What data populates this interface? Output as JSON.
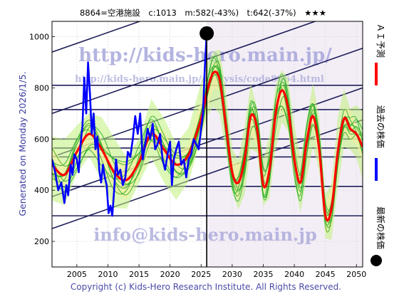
{
  "chart_data": {
    "type": "line",
    "title": "8864=空港施設　c:1013　m:582(-43%)　t:642(-37%)　★★★",
    "side_text": {
      "generated": "Generated on Monday 2026/1/5.",
      "legend_forecast": "ＡＩ予測",
      "legend_past": "過去の株価",
      "legend_latest": "最新の株価"
    },
    "watermarks": [
      "http://kids-hero.main.jp/",
      "http://kids-hero.main.jp/analysis/code8864.html",
      "info@kids-hero.main.jp"
    ],
    "copyright": "Copyright (c) Kids-Hero Research Institute. All Rights Reserved.",
    "xlim": [
      2001,
      2051
    ],
    "ylim": [
      100,
      1060
    ],
    "x_ticks": [
      2005,
      2010,
      2015,
      2020,
      2025,
      2030,
      2035,
      2040,
      2045,
      2050
    ],
    "y_ticks": [
      200,
      400,
      600,
      800,
      1000
    ],
    "grid": true,
    "colors": {
      "past": "#0000ff",
      "forecast": "#ff0000",
      "trend_band": "#1e1e5a",
      "ensemble": "#22aa22",
      "ensemble_fill": "#bff07a",
      "ensemble_fill2": "#f2f0a0",
      "marker": "#000000"
    },
    "horizontal_levels": [
      1063,
      810,
      715,
      600,
      565,
      530,
      415,
      300
    ],
    "trend_lines": [
      {
        "x": [
          2001,
          2051
        ],
        "y": [
          940,
          1365
        ]
      },
      {
        "x": [
          2001,
          2051
        ],
        "y": [
          700,
          1125
        ]
      },
      {
        "x": [
          2001,
          2051
        ],
        "y": [
          530,
          955
        ]
      },
      {
        "x": [
          2001,
          2051
        ],
        "y": [
          375,
          800
        ]
      },
      {
        "x": [
          2001,
          2051
        ],
        "y": [
          250,
          675
        ]
      }
    ],
    "series": [
      {
        "name": "過去の株価",
        "x": [
          2001.0,
          2001.5,
          2002.0,
          2002.5,
          2003.0,
          2003.3,
          2003.6,
          2004.0,
          2004.3,
          2004.6,
          2005.0,
          2005.3,
          2005.6,
          2005.9,
          2006.2,
          2006.5,
          2006.8,
          2007.1,
          2007.4,
          2007.7,
          2008.0,
          2008.3,
          2008.6,
          2008.9,
          2009.2,
          2009.5,
          2009.8,
          2010.1,
          2010.4,
          2010.7,
          2011.0,
          2011.3,
          2011.6,
          2012.0,
          2012.4,
          2012.8,
          2013.2,
          2013.6,
          2014.0,
          2014.4,
          2014.8,
          2015.2,
          2015.6,
          2016.0,
          2016.4,
          2016.8,
          2017.2,
          2017.6,
          2018.0,
          2018.4,
          2018.8,
          2019.2,
          2019.6,
          2020.0,
          2020.3,
          2020.6,
          2021.0,
          2021.4,
          2021.8,
          2022.2,
          2022.6,
          2023.0,
          2023.4,
          2023.8,
          2024.2,
          2024.6,
          2025.0,
          2025.3,
          2025.6,
          2025.9
        ],
        "y": [
          520,
          470,
          400,
          430,
          350,
          420,
          380,
          500,
          460,
          540,
          520,
          470,
          580,
          650,
          840,
          700,
          900,
          780,
          620,
          700,
          560,
          610,
          480,
          430,
          500,
          450,
          420,
          310,
          340,
          300,
          400,
          520,
          460,
          480,
          420,
          450,
          550,
          530,
          600,
          690,
          620,
          700,
          520,
          580,
          640,
          600,
          660,
          560,
          580,
          620,
          520,
          480,
          540,
          590,
          420,
          520,
          560,
          590,
          500,
          520,
          450,
          520,
          540,
          600,
          580,
          560,
          640,
          700,
          880,
          1013
        ]
      },
      {
        "name": "ＡＩ予測",
        "x": [
          2001.0,
          2003.0,
          2005.0,
          2007.0,
          2009.0,
          2011.0,
          2013.0,
          2015.0,
          2017.0,
          2019.0,
          2021.0,
          2023.0,
          2025.0,
          2026.0,
          2027.0,
          2028.0,
          2029.0,
          2030.0,
          2031.0,
          2032.0,
          2033.0,
          2034.0,
          2035.0,
          2036.0,
          2037.0,
          2038.0,
          2039.0,
          2040.0,
          2041.0,
          2042.0,
          2043.0,
          2044.0,
          2045.0,
          2046.0,
          2047.0,
          2048.0,
          2049.0,
          2050.0,
          2051.0
        ],
        "y": [
          500,
          460,
          550,
          620,
          560,
          470,
          440,
          510,
          620,
          560,
          500,
          540,
          680,
          790,
          860,
          830,
          650,
          470,
          430,
          520,
          690,
          640,
          420,
          480,
          700,
          790,
          720,
          520,
          430,
          590,
          690,
          560,
          300,
          330,
          550,
          680,
          640,
          620,
          570
        ]
      }
    ],
    "latest_point": {
      "x": 2025.9,
      "y": 1013
    }
  }
}
